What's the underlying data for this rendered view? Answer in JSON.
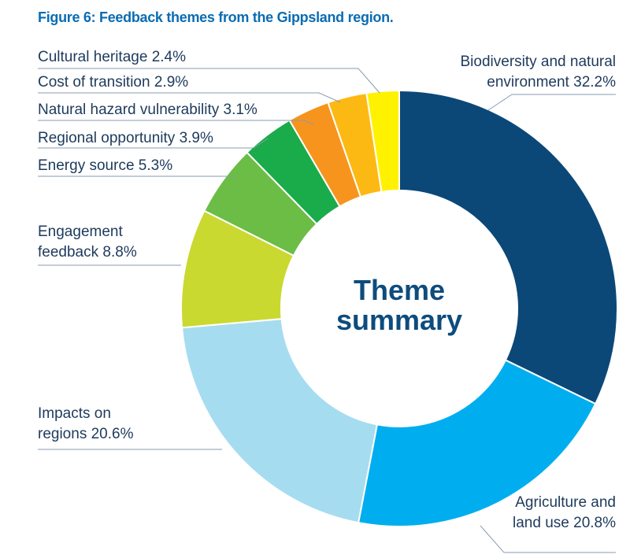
{
  "chart_data": {
    "type": "pie",
    "title": "Figure 6: Feedback themes from the Gippsland region.",
    "center_label": "Theme summary",
    "categories": [
      "Biodiversity and natural environment",
      "Agriculture and land use",
      "Impacts on regions",
      "Engagement feedback",
      "Energy source",
      "Regional opportunity",
      "Natural hazard vulnerability",
      "Cost of transition",
      "Cultural heritage"
    ],
    "values": [
      32.2,
      20.8,
      20.6,
      8.8,
      5.3,
      3.9,
      3.1,
      2.9,
      2.4
    ],
    "value_labels": [
      "32.2%",
      "20.8%",
      "20.6%",
      "8.8%",
      "5.3%",
      "3.9%",
      "3.1%",
      "2.9%",
      "2.4%"
    ],
    "colors": [
      "#0b4878",
      "#00aeef",
      "#a6dcef",
      "#c9d92f",
      "#6bbd45",
      "#1aab4b",
      "#f7941d",
      "#fdb913",
      "#fff200"
    ]
  }
}
